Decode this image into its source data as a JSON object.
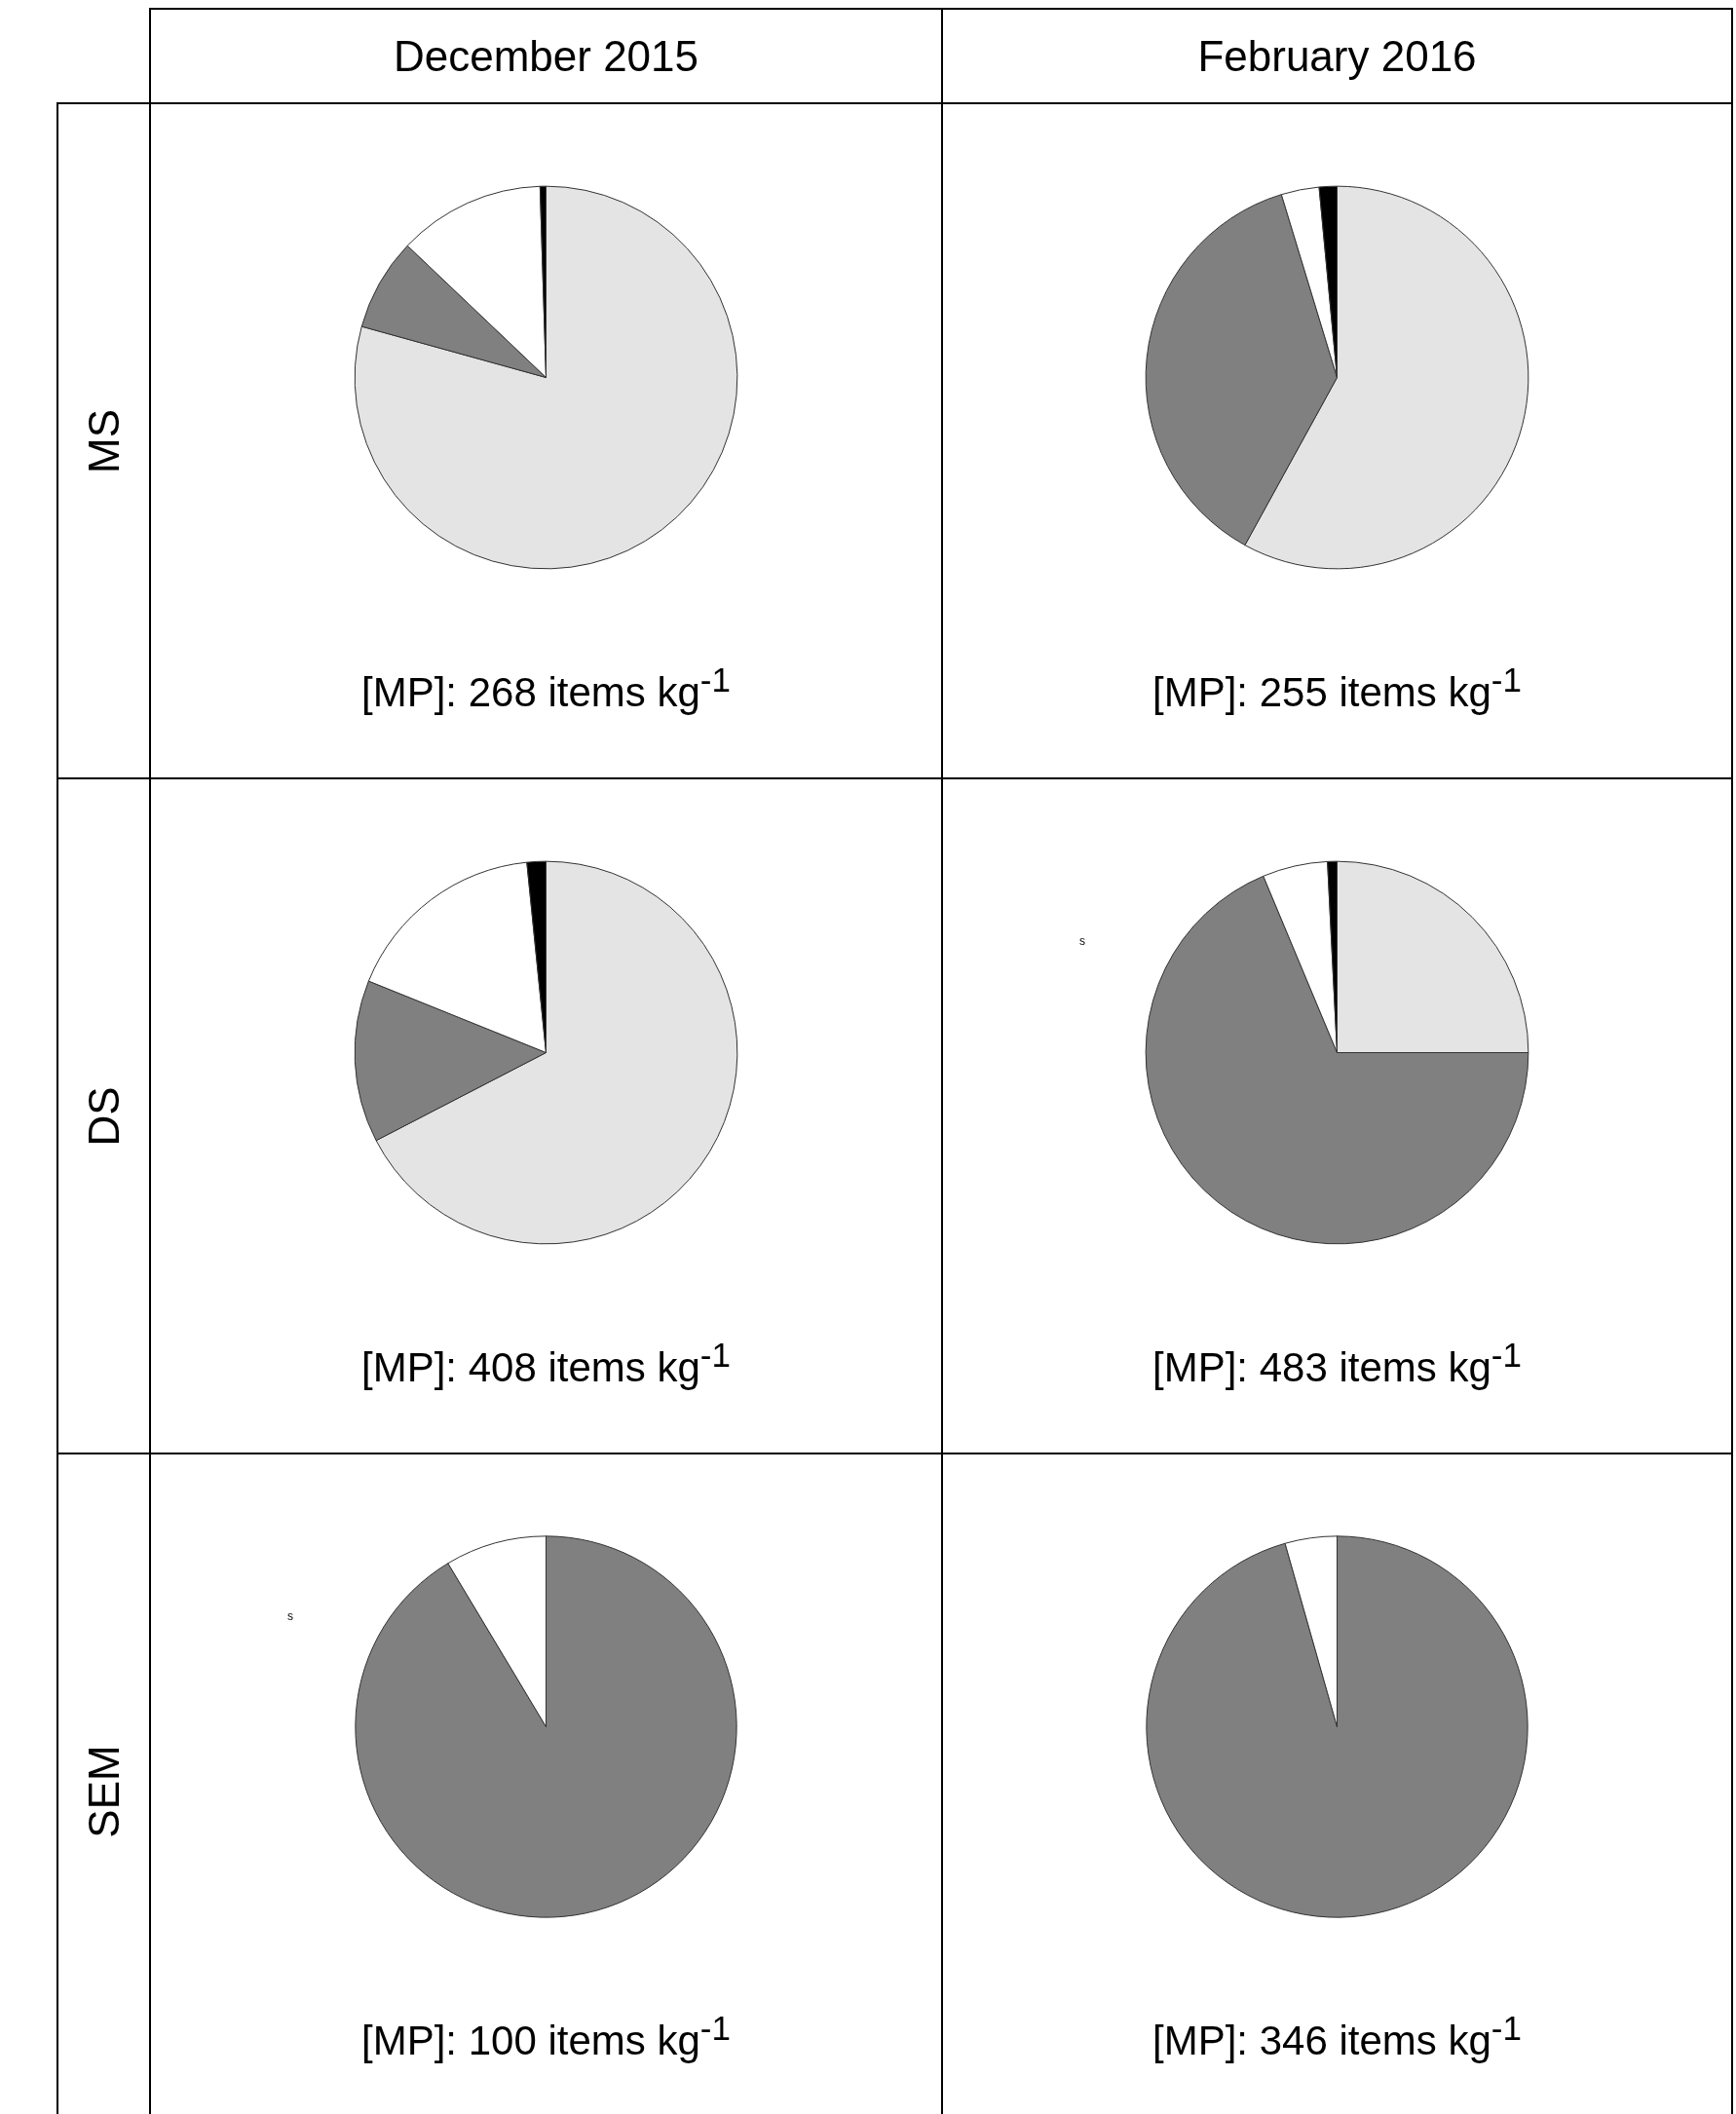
{
  "chart_data": [
    {
      "type": "pie",
      "title": "December 2015",
      "ylabel": "MS",
      "categories": [
        null,
        null,
        null,
        null
      ],
      "values": [
        79.3,
        7.8,
        12.4,
        0.5
      ],
      "colors": [
        "#e4e4e4",
        "#808080",
        "#ffffff",
        "#000000"
      ],
      "annotations": [
        "[MP]: 268 items kg$^{-1}$"
      ]
    },
    {
      "type": "pie",
      "title": "February 2016",
      "categories": [
        null,
        null,
        null,
        null
      ],
      "values": [
        58.0,
        37.3,
        3.2,
        1.5
      ],
      "colors": [
        "#e4e4e4",
        "#808080",
        "#ffffff",
        "#000000"
      ],
      "annotations": [
        "[MP]: 255 items kg$^{-1}$"
      ]
    },
    {
      "type": "pie",
      "ylabel": "DS",
      "categories": [
        null,
        null,
        null,
        null
      ],
      "values": [
        67.4,
        13.7,
        17.3,
        1.6
      ],
      "colors": [
        "#e4e4e4",
        "#808080",
        "#ffffff",
        "#000000"
      ],
      "annotations": [
        "[MP]: 408 items kg$^{-1}$"
      ]
    },
    {
      "type": "pie",
      "categories": [
        null,
        null,
        null,
        null
      ],
      "values": [
        25.0,
        68.7,
        5.5,
        0.8
      ],
      "colors": [
        "#e4e4e4",
        "#808080",
        "#ffffff",
        "#000000"
      ],
      "annotations": [
        "s",
        "[MP]: 483 items kg$^{-1}$"
      ]
    },
    {
      "type": "pie",
      "ylabel": "SEM",
      "categories": [
        null,
        null,
        null,
        null
      ],
      "values": [
        0,
        91.4,
        8.6,
        0
      ],
      "colors": [
        "#e4e4e4",
        "#808080",
        "#ffffff",
        "#000000"
      ],
      "annotations": [
        "s",
        "[MP]: 100 items kg$^{-1}$"
      ]
    },
    {
      "type": "pie",
      "categories": [
        null,
        null,
        null,
        null
      ],
      "values": [
        0,
        95.6,
        4.4,
        0
      ],
      "colors": [
        "#e4e4e4",
        "#808080",
        "#ffffff",
        "#000000"
      ],
      "annotations": [
        "[MP]: 346 items kg$^{-1}$"
      ]
    }
  ]
}
